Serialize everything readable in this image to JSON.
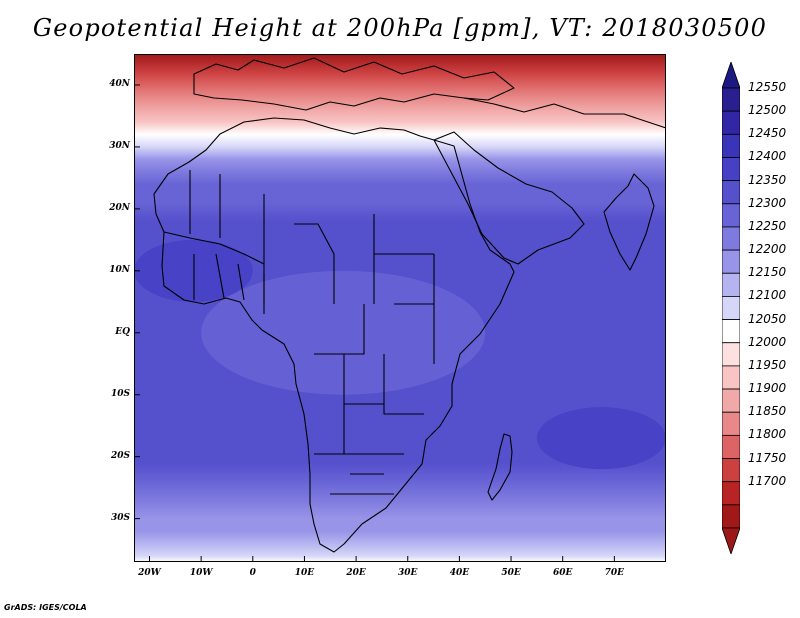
{
  "title": "Geopotential Height at 200hPa [gpm], VT: 2018030500",
  "credit": "GrADS: IGES/COLA",
  "map": {
    "lon_range": [
      -23,
      80
    ],
    "lat_range": [
      -37,
      45
    ],
    "lat_labels": [
      {
        "value": 40,
        "text": "40N"
      },
      {
        "value": 30,
        "text": "30N"
      },
      {
        "value": 20,
        "text": "20N"
      },
      {
        "value": 10,
        "text": "10N"
      },
      {
        "value": 0,
        "text": "EQ"
      },
      {
        "value": -10,
        "text": "10S"
      },
      {
        "value": -20,
        "text": "20S"
      },
      {
        "value": -30,
        "text": "30S"
      }
    ],
    "lon_labels": [
      {
        "value": -20,
        "text": "20W"
      },
      {
        "value": -10,
        "text": "10W"
      },
      {
        "value": 0,
        "text": "0"
      },
      {
        "value": 10,
        "text": "10E"
      },
      {
        "value": 20,
        "text": "20E"
      },
      {
        "value": 30,
        "text": "30E"
      },
      {
        "value": 40,
        "text": "40E"
      },
      {
        "value": 50,
        "text": "50E"
      },
      {
        "value": 60,
        "text": "60E"
      },
      {
        "value": 70,
        "text": "70E"
      }
    ]
  },
  "colorbar": {
    "levels": [
      "12550",
      "12500",
      "12450",
      "12400",
      "12350",
      "12300",
      "12250",
      "12200",
      "12150",
      "12100",
      "12050",
      "12000",
      "11950",
      "11900",
      "11850",
      "11800",
      "11750",
      "11700"
    ],
    "colors": [
      "#2a1f8e",
      "#3226a6",
      "#3a34b8",
      "#4540c4",
      "#5550cc",
      "#6864d6",
      "#7e7ade",
      "#9894e8",
      "#b6b4f0",
      "#d6d6f8",
      "#ffffff",
      "#fde0e0",
      "#f8c4c4",
      "#f1a8a8",
      "#e88888",
      "#dc6464",
      "#cc4040",
      "#b82424",
      "#a01818"
    ],
    "top_color": "#1c1a82",
    "bottom_color": "#9c1818"
  },
  "chart_data": {
    "type": "heatmap",
    "title": "Geopotential Height at 200hPa [gpm], VT: 2018030500",
    "variable": "Geopotential Height at 200hPa",
    "units": "gpm",
    "valid_time": "2018030500",
    "xlim": [
      -23,
      80
    ],
    "ylim": [
      -37,
      45
    ],
    "x_ticks": [
      "20W",
      "10W",
      "0",
      "10E",
      "20E",
      "30E",
      "40E",
      "50E",
      "60E",
      "70E"
    ],
    "y_ticks": [
      "40N",
      "30N",
      "20N",
      "10N",
      "EQ",
      "10S",
      "20S",
      "30S"
    ],
    "contour_levels": [
      11700,
      11750,
      11800,
      11850,
      11900,
      11950,
      12000,
      12050,
      12100,
      12150,
      12200,
      12250,
      12300,
      12350,
      12400,
      12450,
      12500,
      12550
    ],
    "zonal_profile": [
      {
        "lat": 45,
        "value": 11680
      },
      {
        "lat": 42,
        "value": 11760
      },
      {
        "lat": 40,
        "value": 11800
      },
      {
        "lat": 38,
        "value": 11850
      },
      {
        "lat": 36,
        "value": 11920
      },
      {
        "lat": 34,
        "value": 11990
      },
      {
        "lat": 32,
        "value": 12060
      },
      {
        "lat": 30,
        "value": 12130
      },
      {
        "lat": 28,
        "value": 12200
      },
      {
        "lat": 26,
        "value": 12260
      },
      {
        "lat": 24,
        "value": 12300
      },
      {
        "lat": 21,
        "value": 12330
      },
      {
        "lat": 18,
        "value": 12360
      },
      {
        "lat": 12,
        "value": 12375
      },
      {
        "lat": 5,
        "value": 12370
      },
      {
        "lat": 0,
        "value": 12365
      },
      {
        "lat": -6,
        "value": 12370
      },
      {
        "lat": -12,
        "value": 12380
      },
      {
        "lat": -17,
        "value": 12385
      },
      {
        "lat": -21,
        "value": 12360
      },
      {
        "lat": -24,
        "value": 12320
      },
      {
        "lat": -27,
        "value": 12270
      },
      {
        "lat": -30,
        "value": 12230
      },
      {
        "lat": -32,
        "value": 12200
      },
      {
        "lat": -34,
        "value": 12160
      },
      {
        "lat": -36,
        "value": 12110
      },
      {
        "lat": -37,
        "value": 12080
      }
    ],
    "features": [
      {
        "name": "central Africa lower band",
        "lon": [
          -10,
          45
        ],
        "lat": [
          -10,
          10
        ],
        "value": 12320
      },
      {
        "name": "South Indian Ocean high",
        "lon": [
          55,
          80
        ],
        "lat": [
          -22,
          -12
        ],
        "value": 12440
      },
      {
        "name": "western Sahel",
        "lon": [
          -23,
          0
        ],
        "lat": [
          5,
          15
        ],
        "value": 12400
      }
    ]
  }
}
